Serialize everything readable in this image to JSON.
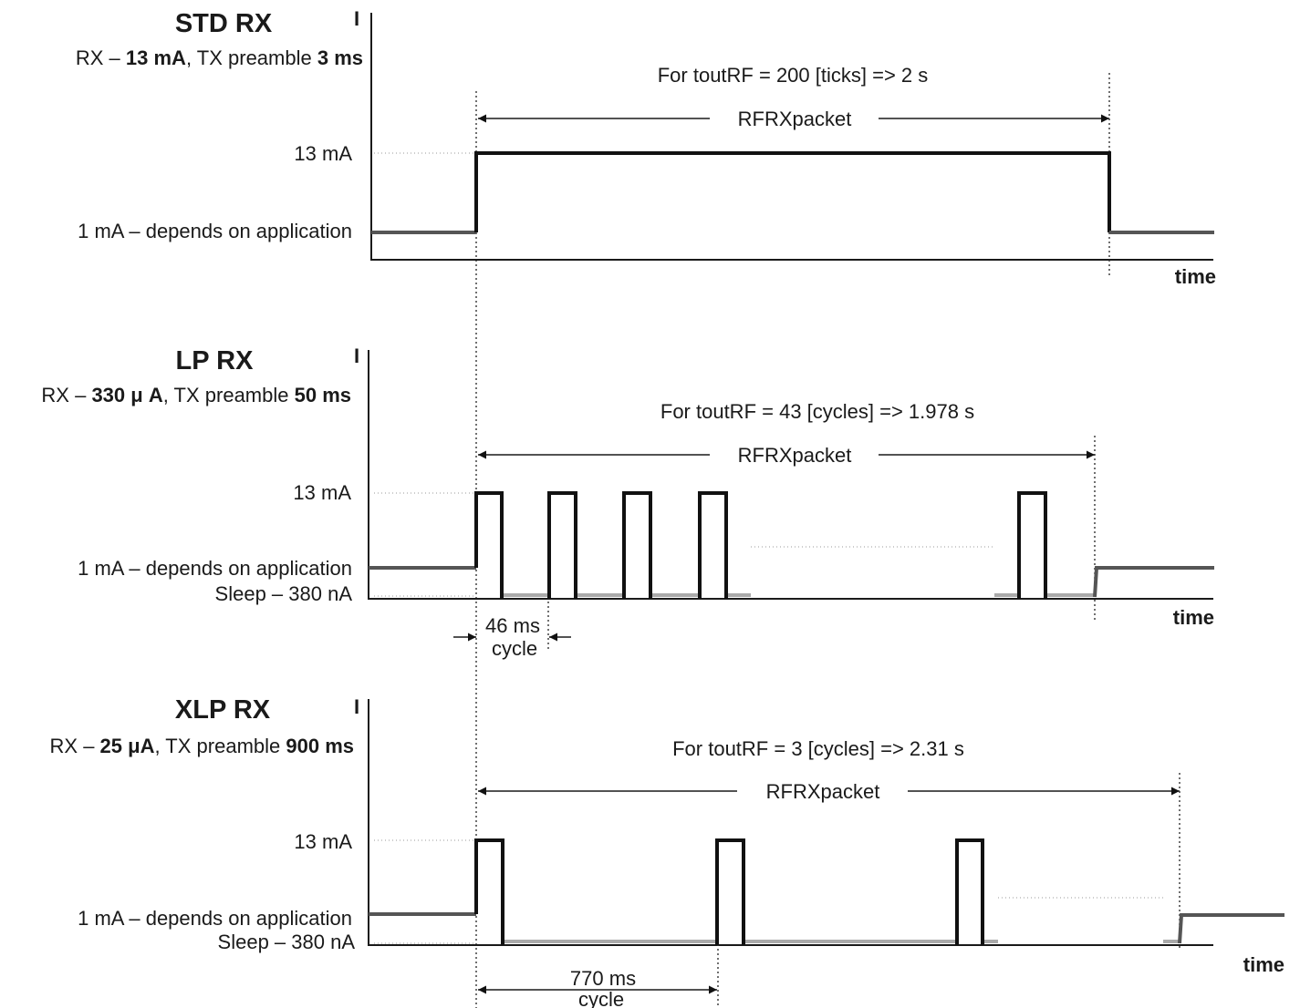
{
  "panels": {
    "std": {
      "title": "STD RX",
      "sub_pre": "RX – ",
      "sub_rx": "13 mA",
      "sub_mid": ", TX preamble ",
      "sub_tx": "3 ms",
      "axis_i": "I",
      "lbl_13ma": "13 mA",
      "lbl_1ma": "1 mA – depends on application",
      "timeout": "For toutRF = 200 [ticks] => 2 s",
      "window": "RFRXpacket",
      "time": "time"
    },
    "lp": {
      "title": "LP RX",
      "sub_pre": "RX – ",
      "sub_rx": "330 μ A",
      "sub_mid": ", TX preamble ",
      "sub_tx": "50  ms",
      "axis_i": "I",
      "lbl_13ma": "13 mA",
      "lbl_1ma": "1 mA – depends on application",
      "lbl_sleep": "Sleep – 380 nA",
      "timeout": "For toutRF = 43 [cycles] => 1.978 s",
      "window": "RFRXpacket",
      "time": "time",
      "cycle_value": "46 ms",
      "cycle_word": "cycle"
    },
    "xlp": {
      "title": "XLP RX",
      "sub_pre": "RX – ",
      "sub_rx": "25 μA",
      "sub_mid": ", TX preamble ",
      "sub_tx": "900 ms",
      "axis_i": "I",
      "lbl_13ma": "13 mA",
      "lbl_1ma": "1 mA – depends on application",
      "lbl_sleep": "Sleep – 380 nA",
      "timeout": "For toutRF = 3 [cycles] => 2.31 s",
      "window": "RFRXpacket",
      "time": "time",
      "cycle_value": "770 ms",
      "cycle_word": "cycle"
    }
  }
}
